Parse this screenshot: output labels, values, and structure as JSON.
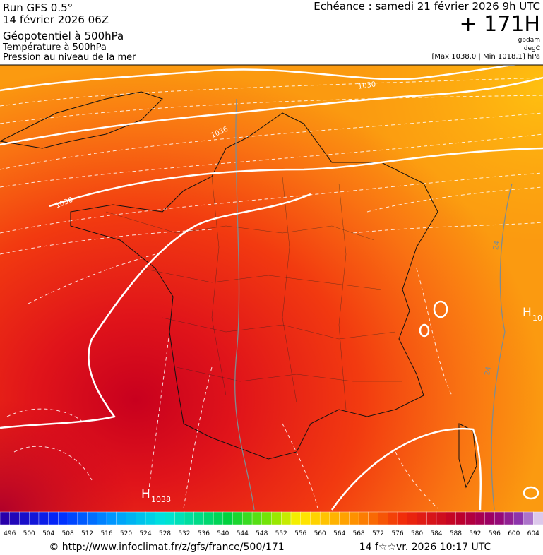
{
  "header": {
    "run": "Run GFS 0.5°",
    "date": "14 février 2026 06Z",
    "line1": "Géopotentiel à 500hPa",
    "line2": "Température à 500hPa",
    "line3": "Pression au niveau de la mer",
    "echeance": "Echéance : samedi 21 février 2026 9h UTC",
    "lead": "+ 171H",
    "unit1": "gpdam",
    "unit2": "degC",
    "range": "[Max 1038.0 | Min 1018.1] hPa"
  },
  "map": {
    "isobar_labels": [
      "1030",
      "1036",
      "1036"
    ],
    "isotherm_labels": [
      "24",
      "24"
    ],
    "highs": [
      {
        "symbol": "H",
        "value": "1038"
      },
      {
        "symbol": "H",
        "value": "10"
      }
    ]
  },
  "colorbar": {
    "labels": [
      496,
      500,
      504,
      508,
      512,
      516,
      520,
      524,
      528,
      532,
      536,
      540,
      544,
      548,
      552,
      556,
      560,
      564,
      568,
      572,
      576,
      580,
      584,
      588,
      592,
      596,
      600,
      604
    ]
  },
  "footer": {
    "source": "© http://www.infoclimat.fr/z/gfs/france/500/171",
    "timestamp": "14 f☆☆vr. 2026 10:17 UTC"
  }
}
